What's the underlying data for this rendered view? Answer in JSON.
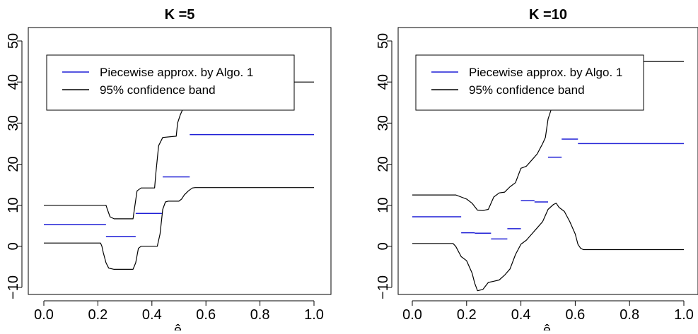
{
  "chart_data": [
    {
      "type": "line",
      "title": "K =5",
      "xlabel": "ê_i",
      "xlim": [
        0,
        1
      ],
      "ylim": [
        -10,
        50
      ],
      "xticks": [
        "0.0",
        "0.2",
        "0.4",
        "0.6",
        "0.8",
        "1.0"
      ],
      "yticks": [
        "−10",
        "0",
        "10",
        "20",
        "30",
        "40",
        "50"
      ],
      "legend": {
        "position": "top-left",
        "entries": [
          {
            "label": "Piecewise approx. by Algo. 1",
            "color": "#1f1fd6"
          },
          {
            "label": "95% confidence band",
            "color": "#000000"
          }
        ]
      },
      "series": [
        {
          "name": "Piecewise approx. by Algo. 1",
          "kind": "segments",
          "color": "#1f1fd6",
          "segments": [
            {
              "x0": 0.0,
              "x1": 0.23,
              "y": 5.3
            },
            {
              "x0": 0.23,
              "x1": 0.34,
              "y": 2.4
            },
            {
              "x0": 0.34,
              "x1": 0.44,
              "y": 8.0
            },
            {
              "x0": 0.44,
              "x1": 0.54,
              "y": 16.9
            },
            {
              "x0": 0.54,
              "x1": 1.0,
              "y": 27.2
            }
          ]
        },
        {
          "name": "95% confidence band",
          "kind": "line",
          "color": "#000000",
          "x": [
            0.0,
            0.23,
            0.235,
            0.245,
            0.26,
            0.33,
            0.335,
            0.345,
            0.36,
            0.41,
            0.415,
            0.425,
            0.44,
            0.49,
            0.495,
            0.505,
            0.515,
            0.525,
            0.535,
            0.545,
            0.555,
            1.0
          ],
          "y": [
            10.0,
            10.0,
            9.0,
            7.2,
            6.7,
            6.7,
            9.0,
            13.5,
            14.2,
            14.2,
            18.0,
            24.5,
            26.5,
            26.8,
            30.0,
            32.0,
            33.5,
            36.0,
            39.5,
            40.0,
            40.0,
            40.0
          ]
        },
        {
          "name": "95% confidence band",
          "kind": "line",
          "color": "#000000",
          "x": [
            0.0,
            0.21,
            0.215,
            0.22,
            0.23,
            0.24,
            0.26,
            0.33,
            0.34,
            0.35,
            0.36,
            0.42,
            0.43,
            0.44,
            0.45,
            0.46,
            0.5,
            0.51,
            0.52,
            0.535,
            0.55,
            0.56,
            1.0
          ],
          "y": [
            0.8,
            0.8,
            0.0,
            -1.5,
            -4.0,
            -5.3,
            -5.6,
            -5.6,
            -4.0,
            -0.5,
            0.0,
            0.0,
            3.0,
            9.0,
            10.8,
            11.0,
            11.0,
            11.5,
            12.5,
            13.5,
            14.2,
            14.3,
            14.3
          ]
        }
      ]
    },
    {
      "type": "line",
      "title": "K =10",
      "xlabel": "ê_i",
      "xlim": [
        0,
        1
      ],
      "ylim": [
        -10,
        50
      ],
      "xticks": [
        "0.0",
        "0.2",
        "0.4",
        "0.6",
        "0.8",
        "1.0"
      ],
      "yticks": [
        "−10",
        "0",
        "10",
        "20",
        "30",
        "40",
        "50"
      ],
      "legend": {
        "position": "top-left",
        "entries": [
          {
            "label": "Piecewise approx. by Algo. 1",
            "color": "#1f1fd6"
          },
          {
            "label": "95% confidence band",
            "color": "#000000"
          }
        ]
      },
      "series": [
        {
          "name": "Piecewise approx. by Algo. 1",
          "kind": "segments",
          "color": "#1f1fd6",
          "segments": [
            {
              "x0": 0.0,
              "x1": 0.18,
              "y": 7.2
            },
            {
              "x0": 0.18,
              "x1": 0.23,
              "y": 3.3
            },
            {
              "x0": 0.23,
              "x1": 0.29,
              "y": 3.2
            },
            {
              "x0": 0.29,
              "x1": 0.35,
              "y": 1.8
            },
            {
              "x0": 0.35,
              "x1": 0.4,
              "y": 4.3
            },
            {
              "x0": 0.4,
              "x1": 0.45,
              "y": 11.1
            },
            {
              "x0": 0.45,
              "x1": 0.5,
              "y": 10.8
            },
            {
              "x0": 0.5,
              "x1": 0.55,
              "y": 21.7
            },
            {
              "x0": 0.55,
              "x1": 0.61,
              "y": 26.1
            },
            {
              "x0": 0.61,
              "x1": 1.0,
              "y": 25.0
            }
          ]
        },
        {
          "name": "95% confidence band",
          "kind": "line",
          "color": "#000000",
          "x": [
            0.0,
            0.16,
            0.18,
            0.2,
            0.22,
            0.24,
            0.26,
            0.28,
            0.3,
            0.32,
            0.34,
            0.36,
            0.38,
            0.4,
            0.42,
            0.44,
            0.46,
            0.48,
            0.49,
            0.5,
            0.51,
            0.52,
            0.53,
            0.54,
            0.55,
            0.56,
            0.57,
            0.58,
            0.59,
            0.6,
            0.61,
            0.62,
            0.63,
            1.0
          ],
          "y": [
            12.5,
            12.5,
            12.0,
            11.5,
            10.5,
            8.8,
            8.7,
            9.0,
            12.0,
            13.0,
            13.2,
            14.5,
            15.5,
            19.0,
            19.5,
            21.0,
            22.5,
            25.0,
            26.5,
            31.0,
            33.0,
            36.5,
            39.0,
            40.5,
            41.0,
            41.5,
            42.0,
            43.5,
            45.0,
            46.0,
            45.5,
            45.0,
            45.0,
            45.0
          ]
        },
        {
          "name": "95% confidence band",
          "kind": "line",
          "color": "#000000",
          "x": [
            0.0,
            0.15,
            0.16,
            0.18,
            0.2,
            0.22,
            0.23,
            0.24,
            0.26,
            0.28,
            0.3,
            0.32,
            0.34,
            0.36,
            0.38,
            0.4,
            0.42,
            0.44,
            0.46,
            0.48,
            0.5,
            0.52,
            0.53,
            0.54,
            0.56,
            0.58,
            0.6,
            0.61,
            0.62,
            0.63,
            1.0
          ],
          "y": [
            0.7,
            0.7,
            0.0,
            -2.5,
            -3.5,
            -6.5,
            -9.0,
            -10.8,
            -10.5,
            -8.8,
            -8.5,
            -8.2,
            -7.0,
            -5.5,
            -2.0,
            0.5,
            1.5,
            3.0,
            4.5,
            6.0,
            9.0,
            10.2,
            10.5,
            9.5,
            8.5,
            6.0,
            3.0,
            0.5,
            -0.5,
            -0.8,
            -0.8
          ]
        }
      ]
    }
  ]
}
